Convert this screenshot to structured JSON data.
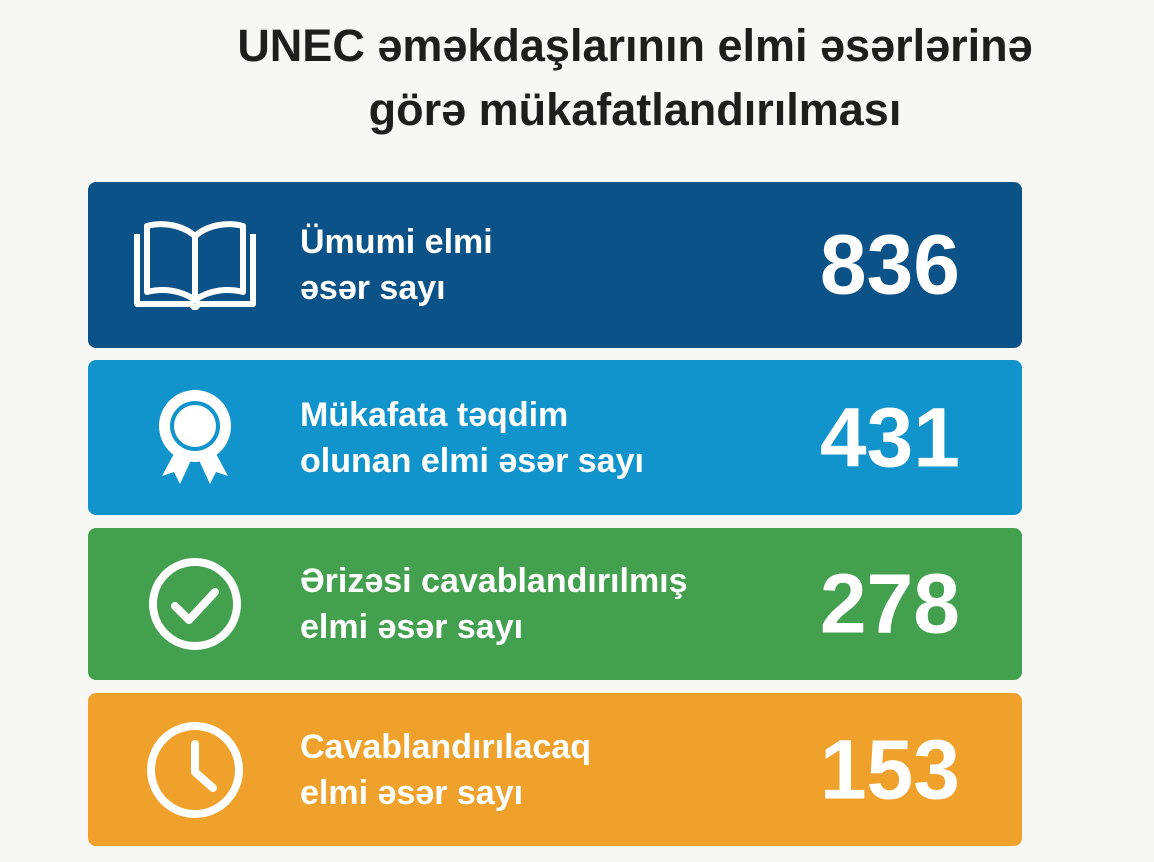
{
  "title": {
    "line1": "UNEC əməkdaşlarının elmi əsərlərinə",
    "line2": "görə mükafatlandırılması"
  },
  "cards": [
    {
      "icon": "open-book-icon",
      "label1": "Ümumi elmi",
      "label2": "əsər sayı",
      "value": "836",
      "color": "#0b5288"
    },
    {
      "icon": "award-ribbon-icon",
      "label1": "Mükafata təqdim",
      "label2": "olunan elmi əsər sayı",
      "value": "431",
      "color": "#1193cc"
    },
    {
      "icon": "check-circle-icon",
      "label1": "Ərizəsi cavablandırılmış",
      "label2": "elmi əsər sayı",
      "value": "278",
      "color": "#43a04f"
    },
    {
      "icon": "clock-icon",
      "label1": "Cavablandırılacaq",
      "label2": "elmi əsər sayı",
      "value": "153",
      "color": "#f0a12b"
    }
  ]
}
